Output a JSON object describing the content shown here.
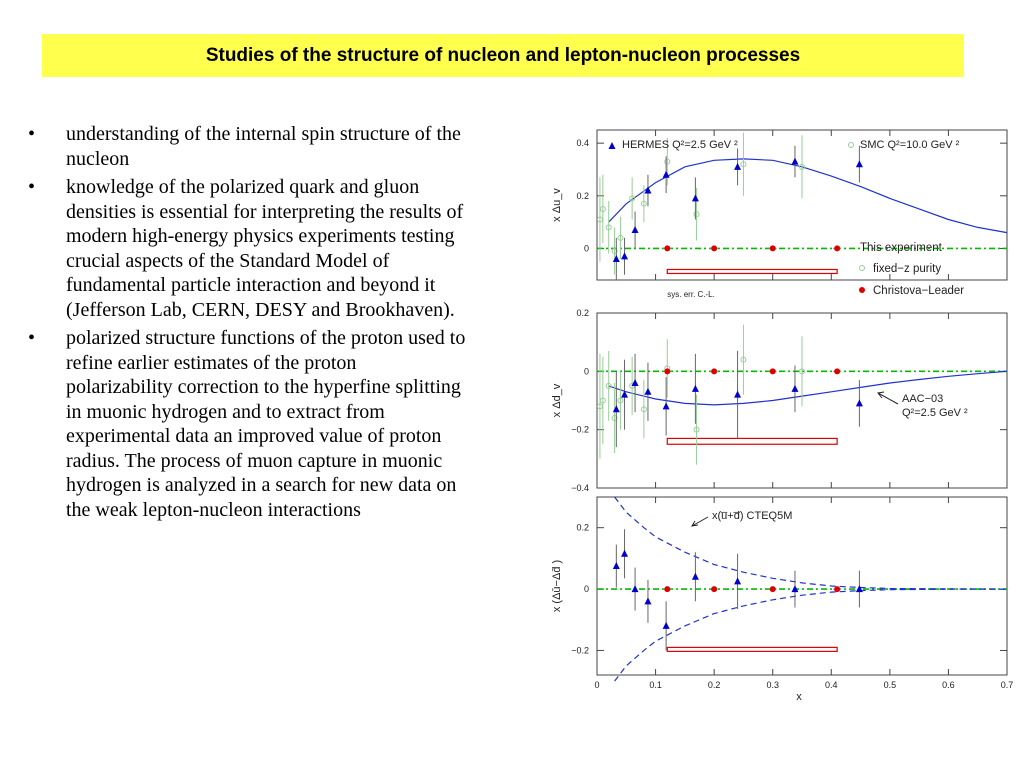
{
  "title": "Studies of the structure of nucleon and lepton-nucleon processes",
  "bullet_symbol": "•",
  "bullets": [
    "understanding of the internal spin structure of the nucleon",
    "knowledge of the polarized quark and gluon densities is essential for interpreting the results of modern high-energy physics experiments testing crucial aspects of the Standard Model of fundamental particle interaction and beyond it (Jefferson Lab, CERN, DESY and Brookhaven).",
    "polarized structure functions of the proton used to refine earlier estimates of the proton polarizability correction to the hyperfine splitting in muonic hydrogen and to extract from experimental data an improved value of proton radius. The process of muon capture in muonic hydrogen is analyzed in a search for new data on the weak lepton-nucleon interactions"
  ],
  "chart_data": {
    "type": "scatter",
    "xlabel": "x",
    "xlim": [
      0,
      0.7
    ],
    "xticks": [
      0,
      0.1,
      0.2,
      0.3,
      0.4,
      0.5,
      0.6,
      0.7
    ],
    "colors": {
      "hermes": "#0000cc",
      "smc": "#99cc99",
      "this": "#dd0000",
      "zero_line": "#00bb00",
      "curve": "#2233cc",
      "band": "#dd0000"
    },
    "panels": [
      {
        "ylabel": "x Δu_v",
        "ylim": [
          -0.12,
          0.45
        ],
        "yticks": [
          {
            "v": 0,
            "label": "0"
          },
          {
            "v": 0.2,
            "label": "0.2"
          },
          {
            "v": 0.4,
            "label": "0.4"
          }
        ],
        "hermes": [
          [
            0.033,
            -0.04,
            0.08
          ],
          [
            0.047,
            -0.03,
            0.07
          ],
          [
            0.065,
            0.07,
            0.07
          ],
          [
            0.087,
            0.22,
            0.06
          ],
          [
            0.118,
            0.28,
            0.07
          ],
          [
            0.168,
            0.19,
            0.08
          ],
          [
            0.24,
            0.31,
            0.07
          ],
          [
            0.338,
            0.33,
            0.06
          ],
          [
            0.448,
            0.32,
            0.07
          ]
        ],
        "smc": [
          [
            0.005,
            0.11,
            0.16
          ],
          [
            0.01,
            0.15,
            0.13
          ],
          [
            0.02,
            0.08,
            0.1
          ],
          [
            0.03,
            -0.01,
            0.09
          ],
          [
            0.04,
            0.04,
            0.08
          ],
          [
            0.06,
            0.19,
            0.08
          ],
          [
            0.08,
            0.17,
            0.07
          ],
          [
            0.12,
            0.33,
            0.09
          ],
          [
            0.17,
            0.13,
            0.1
          ],
          [
            0.25,
            0.32,
            0.12
          ],
          [
            0.35,
            0.31,
            0.12
          ]
        ],
        "this": [
          [
            0.12,
            0
          ],
          [
            0.2,
            0
          ],
          [
            0.3,
            0
          ],
          [
            0.41,
            0
          ]
        ],
        "curve": [
          [
            0.02,
            0.1
          ],
          [
            0.05,
            0.17
          ],
          [
            0.1,
            0.25
          ],
          [
            0.15,
            0.31
          ],
          [
            0.2,
            0.335
          ],
          [
            0.25,
            0.34
          ],
          [
            0.3,
            0.335
          ],
          [
            0.35,
            0.31
          ],
          [
            0.4,
            0.275
          ],
          [
            0.45,
            0.235
          ],
          [
            0.5,
            0.19
          ],
          [
            0.55,
            0.15
          ],
          [
            0.6,
            0.11
          ],
          [
            0.65,
            0.08
          ],
          [
            0.7,
            0.06
          ]
        ],
        "band": [
          0.12,
          0.41,
          -0.08,
          -0.09
        ],
        "legend": {
          "hermes": "HERMES Q²=2.5 GeV ²",
          "smc": "SMC Q²=10.0 GeV ²",
          "header": "This experiment",
          "fixedz": "fixed−z purity",
          "cl": "Christova−Leader"
        },
        "band_label": "sys. err. C.-L."
      },
      {
        "ylabel": "x Δd_v",
        "ylim": [
          -0.4,
          0.2
        ],
        "yticks": [
          {
            "v": 0.2,
            "label": "0.2"
          },
          {
            "v": 0,
            "label": "0"
          },
          {
            "v": -0.2,
            "label": "−0.2"
          },
          {
            "v": -0.4,
            "label": "−0.4"
          }
        ],
        "hermes": [
          [
            0.033,
            -0.13,
            0.13
          ],
          [
            0.047,
            -0.08,
            0.12
          ],
          [
            0.065,
            -0.04,
            0.1
          ],
          [
            0.087,
            -0.07,
            0.1
          ],
          [
            0.118,
            -0.12,
            0.1
          ],
          [
            0.168,
            -0.06,
            0.12
          ],
          [
            0.24,
            -0.08,
            0.15
          ],
          [
            0.338,
            -0.06,
            0.08
          ],
          [
            0.448,
            -0.11,
            0.08
          ]
        ],
        "smc": [
          [
            0.005,
            -0.12,
            0.18
          ],
          [
            0.01,
            -0.1,
            0.15
          ],
          [
            0.02,
            -0.05,
            0.12
          ],
          [
            0.03,
            -0.16,
            0.12
          ],
          [
            0.04,
            -0.1,
            0.1
          ],
          [
            0.06,
            -0.05,
            0.1
          ],
          [
            0.08,
            -0.13,
            0.1
          ],
          [
            0.12,
            0.01,
            0.1
          ],
          [
            0.17,
            -0.2,
            0.12
          ],
          [
            0.25,
            0.04,
            0.12
          ],
          [
            0.35,
            0.0,
            0.12
          ]
        ],
        "this": [
          [
            0.12,
            0
          ],
          [
            0.2,
            0
          ],
          [
            0.3,
            0
          ],
          [
            0.41,
            0
          ]
        ],
        "curve": [
          [
            0.02,
            -0.05
          ],
          [
            0.05,
            -0.07
          ],
          [
            0.1,
            -0.095
          ],
          [
            0.15,
            -0.11
          ],
          [
            0.2,
            -0.115
          ],
          [
            0.25,
            -0.11
          ],
          [
            0.3,
            -0.1
          ],
          [
            0.35,
            -0.085
          ],
          [
            0.4,
            -0.07
          ],
          [
            0.45,
            -0.055
          ],
          [
            0.5,
            -0.04
          ],
          [
            0.55,
            -0.028
          ],
          [
            0.6,
            -0.017
          ],
          [
            0.65,
            -0.008
          ],
          [
            0.7,
            0
          ]
        ],
        "band": [
          0.12,
          0.41,
          -0.23,
          -0.25
        ],
        "annotation": [
          "AAC−03",
          "Q²=2.5 GeV ²"
        ]
      },
      {
        "ylabel": "x (Δū−Δd̄ )",
        "ylim": [
          -0.28,
          0.3
        ],
        "yticks": [
          {
            "v": 0.2,
            "label": "0.2"
          },
          {
            "v": 0,
            "label": "0"
          },
          {
            "v": -0.2,
            "label": "−0.2"
          }
        ],
        "hermes": [
          [
            0.033,
            0.075,
            0.07
          ],
          [
            0.047,
            0.115,
            0.08
          ],
          [
            0.065,
            0.0,
            0.07
          ],
          [
            0.087,
            -0.04,
            0.07
          ],
          [
            0.118,
            -0.12,
            0.08
          ],
          [
            0.168,
            0.04,
            0.08
          ],
          [
            0.24,
            0.025,
            0.09
          ],
          [
            0.338,
            0.0,
            0.06
          ],
          [
            0.448,
            0.0,
            0.06
          ]
        ],
        "smc": [],
        "this": [
          [
            0.12,
            0
          ],
          [
            0.2,
            0
          ],
          [
            0.3,
            0
          ],
          [
            0.41,
            0
          ]
        ],
        "curve": [
          [
            0.03,
            0.3
          ],
          [
            0.05,
            0.25
          ],
          [
            0.08,
            0.2
          ],
          [
            0.1,
            0.17
          ],
          [
            0.15,
            0.12
          ],
          [
            0.2,
            0.08
          ],
          [
            0.25,
            0.055
          ],
          [
            0.3,
            0.035
          ],
          [
            0.35,
            0.02
          ],
          [
            0.4,
            0.01
          ],
          [
            0.45,
            0.005
          ],
          [
            0.5,
            0.002
          ],
          [
            0.6,
            0.0005
          ],
          [
            0.7,
            0
          ]
        ],
        "band": [
          0.12,
          0.41,
          -0.19,
          -0.2
        ],
        "annotation": [
          "x(u̅+d̅) CTEQ5M"
        ]
      }
    ]
  }
}
